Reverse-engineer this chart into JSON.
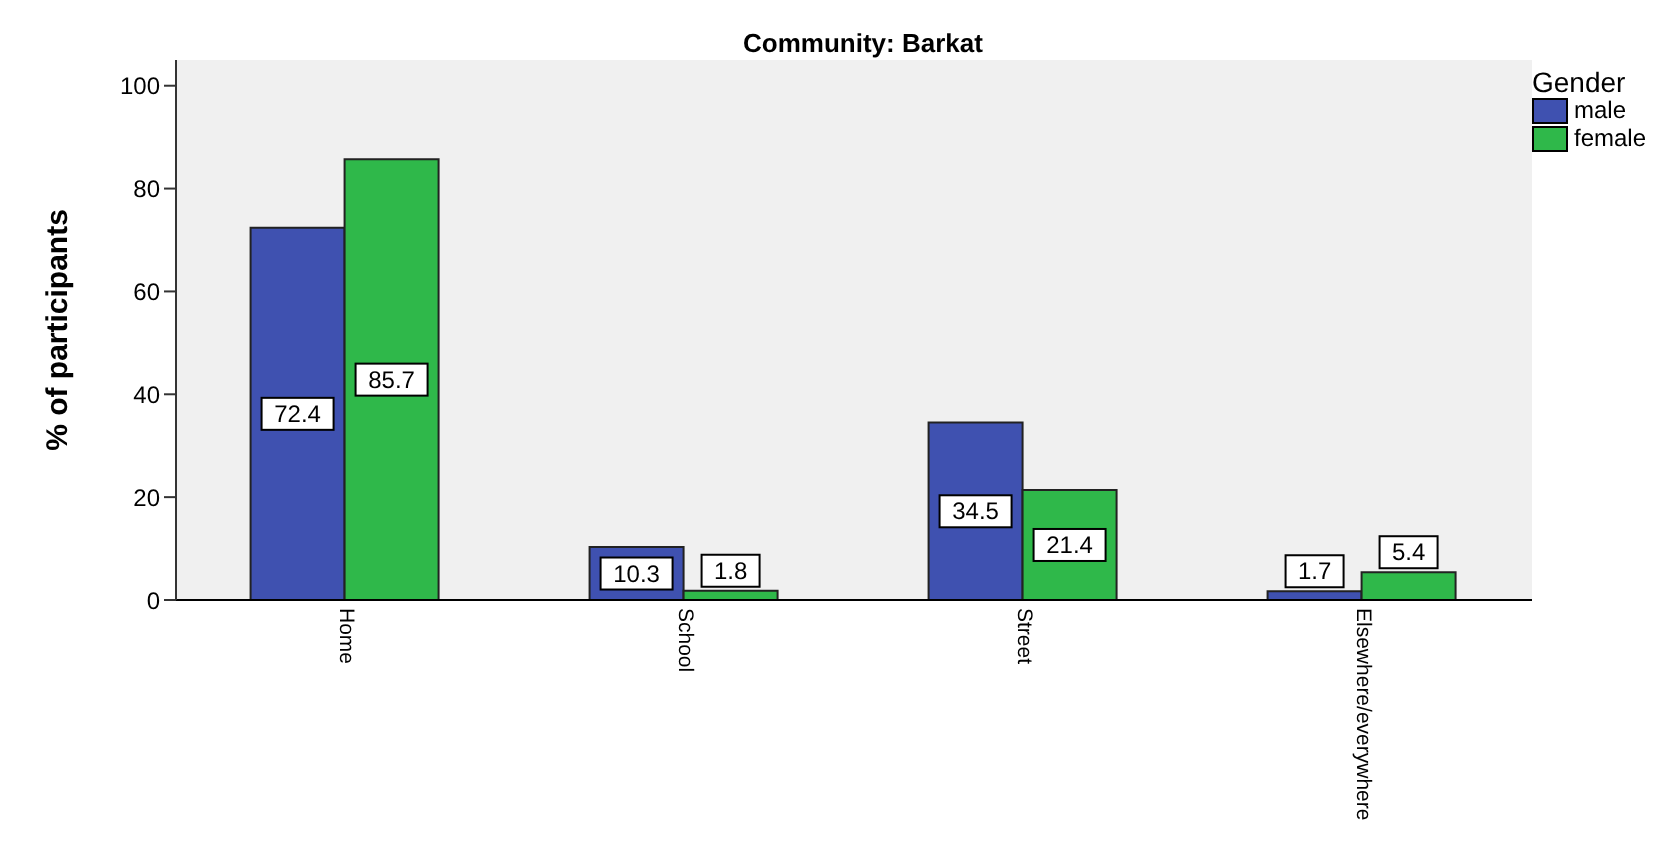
{
  "chart_data": {
    "type": "bar",
    "title": "Community: Barkat",
    "ylabel": "% of participants",
    "legend_title": "Gender",
    "categories": [
      "Home",
      "School",
      "Street",
      "Elsewhere/everywhere"
    ],
    "series": [
      {
        "name": "male",
        "color": "#3f51b0",
        "values": [
          72.4,
          10.3,
          34.5,
          1.7
        ]
      },
      {
        "name": "female",
        "color": "#2fb84a",
        "values": [
          85.7,
          1.8,
          21.4,
          5.4
        ]
      }
    ],
    "ylim": [
      0,
      105
    ],
    "yticks": [
      0,
      20,
      40,
      60,
      80,
      100
    ],
    "grid": false,
    "legend": "top right",
    "data_labels": true
  }
}
